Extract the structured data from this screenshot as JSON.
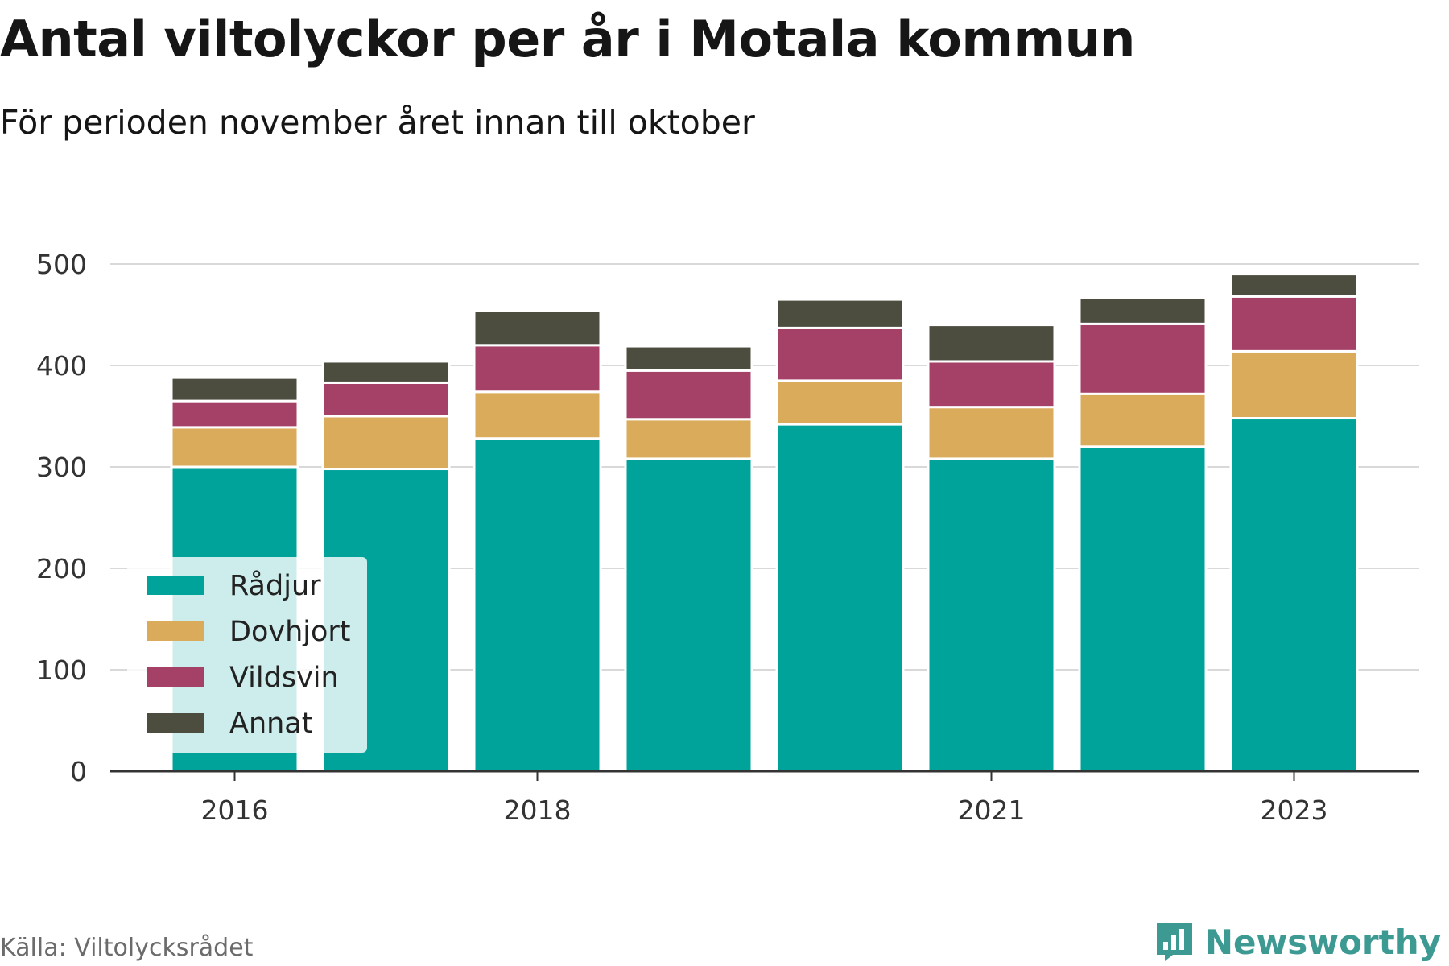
{
  "header": {
    "title": "Antal viltolyckor per år i Motala kommun",
    "subtitle": "För perioden november året innan till oktober"
  },
  "footer": {
    "source": "Källa: Viltolycksrådet",
    "brand": "Newsworthy",
    "brand_icon": "newsworthy-logo-icon"
  },
  "colors": {
    "Rådjur": "#00a39a",
    "Dovhjort": "#d9ab5a",
    "Vildsvin": "#a54167",
    "Annat": "#4c4d3f",
    "grid": "#d9d9d9",
    "axis": "#333333"
  },
  "chart_data": {
    "type": "bar",
    "stacked": true,
    "categories": [
      "2016",
      "2017",
      "2018",
      "2019",
      "2020",
      "2021",
      "2022",
      "2023"
    ],
    "x_tick_labels": [
      "2016",
      "2018",
      "2021",
      "2023"
    ],
    "series": [
      {
        "name": "Rådjur",
        "values": [
          300,
          298,
          328,
          308,
          342,
          308,
          320,
          348
        ]
      },
      {
        "name": "Dovhjort",
        "values": [
          39,
          52,
          46,
          39,
          43,
          51,
          52,
          66
        ]
      },
      {
        "name": "Vildsvin",
        "values": [
          26,
          33,
          46,
          48,
          52,
          45,
          69,
          54
        ]
      },
      {
        "name": "Annat",
        "values": [
          23,
          21,
          34,
          24,
          28,
          36,
          26,
          22
        ]
      }
    ],
    "ylim": [
      0,
      500
    ],
    "yticks": [
      0,
      100,
      200,
      300,
      400,
      500
    ],
    "grid": true,
    "legend_position": "bottom-left"
  }
}
